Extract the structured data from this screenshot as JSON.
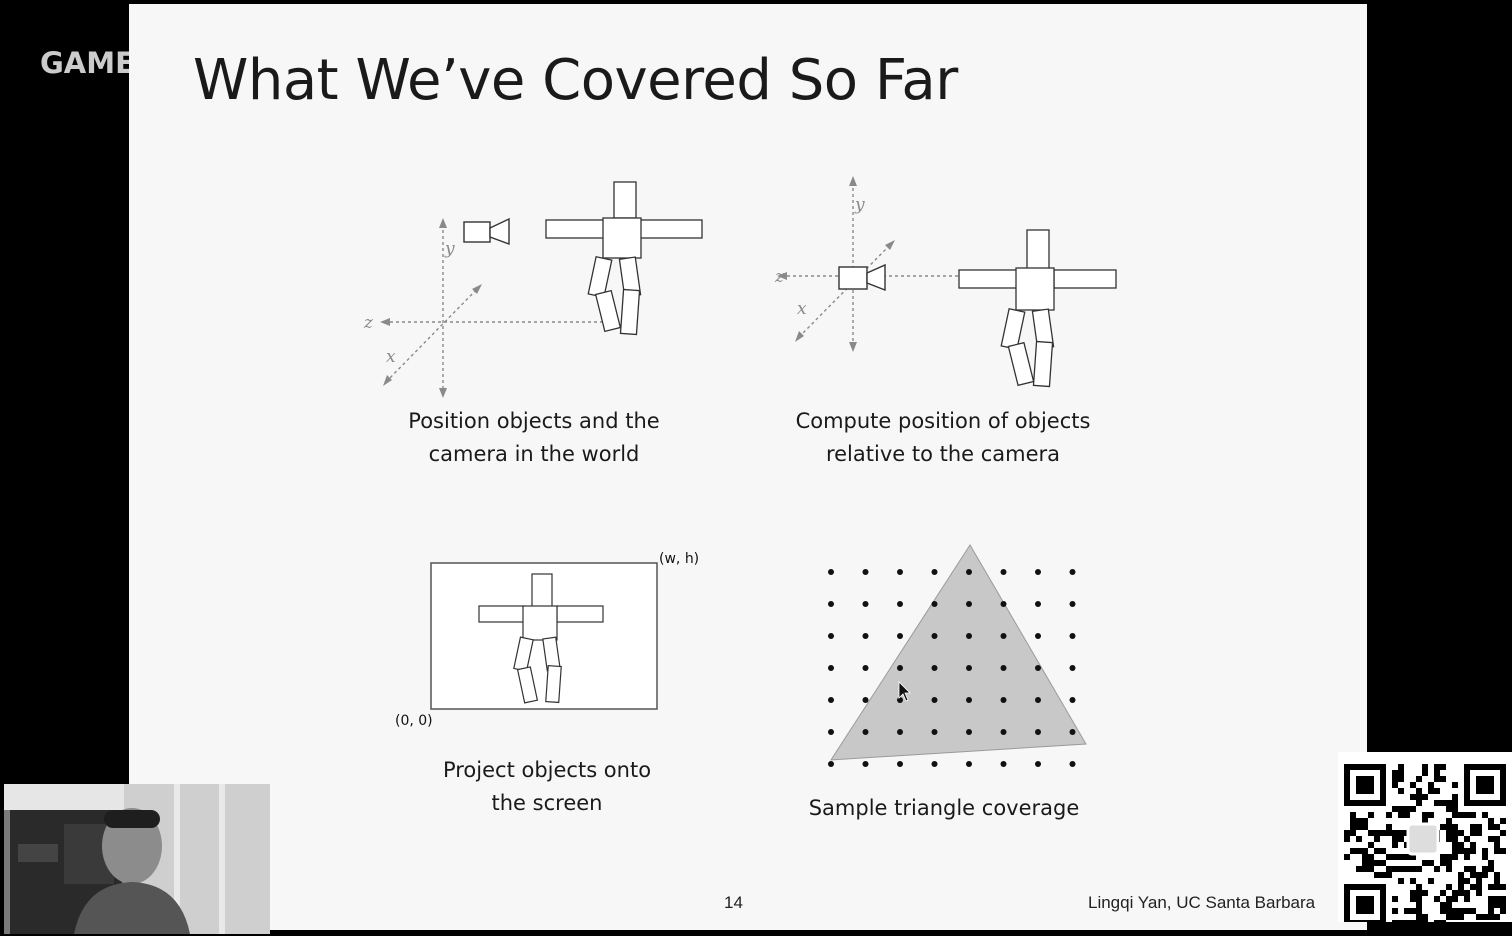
{
  "watermark": {
    "text": "GAMES"
  },
  "slide": {
    "title": "What We’ve Covered So Far",
    "panels": {
      "world": {
        "caption_lines": [
          "Position objects and the",
          "camera in the world"
        ],
        "axes": {
          "x": "x",
          "y": "y",
          "z": "z"
        }
      },
      "camera": {
        "caption_lines": [
          "Compute position of objects",
          "relative to the camera"
        ],
        "axes": {
          "x": "x",
          "y": "y",
          "z": "z"
        }
      },
      "screen": {
        "caption_lines": [
          "Project objects onto",
          "the screen"
        ],
        "corner_top_right": "(w, h)",
        "corner_bottom_left": "(0, 0)"
      },
      "raster": {
        "caption_lines": [
          "Sample triangle coverage"
        ]
      }
    },
    "page_number": "14",
    "footer": "Lingqi Yan, UC Santa Barbara"
  },
  "colors": {
    "slide_background": "#f7f7f7",
    "outside_background": "#000000",
    "triangle_fill": "#c8c8c8"
  },
  "icons": [
    "camera-icon",
    "cursor-icon",
    "qr-code-icon"
  ]
}
